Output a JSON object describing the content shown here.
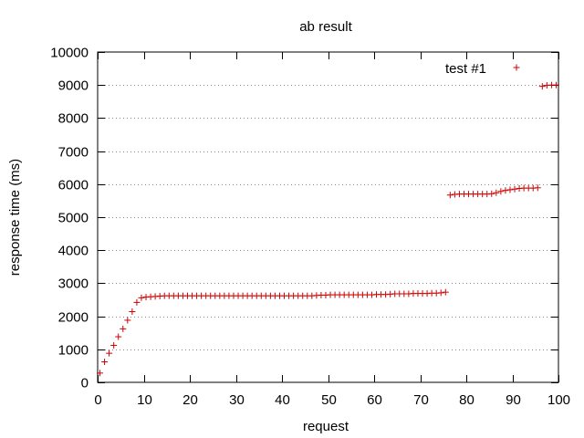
{
  "chart_data": {
    "type": "scatter",
    "title": "ab result",
    "xlabel": "request",
    "ylabel": "response time (ms)",
    "xlim": [
      0,
      100
    ],
    "ylim": [
      0,
      10000
    ],
    "x_ticks": [
      0,
      10,
      20,
      30,
      40,
      50,
      60,
      70,
      80,
      90,
      100
    ],
    "y_ticks": [
      0,
      1000,
      2000,
      3000,
      4000,
      5000,
      6000,
      7000,
      8000,
      9000,
      10000
    ],
    "grid": "horizontal-dotted",
    "legend_position": "top-right",
    "series": [
      {
        "name": "test #1",
        "color": "#cc0000",
        "marker": "plus",
        "x": [
          0,
          1,
          2,
          3,
          4,
          5,
          6,
          7,
          8,
          9,
          10,
          11,
          12,
          13,
          14,
          15,
          16,
          17,
          18,
          19,
          20,
          21,
          22,
          23,
          24,
          25,
          26,
          27,
          28,
          29,
          30,
          31,
          32,
          33,
          34,
          35,
          36,
          37,
          38,
          39,
          40,
          41,
          42,
          43,
          44,
          45,
          46,
          47,
          48,
          49,
          50,
          51,
          52,
          53,
          54,
          55,
          56,
          57,
          58,
          59,
          60,
          61,
          62,
          63,
          64,
          65,
          66,
          67,
          68,
          69,
          70,
          71,
          72,
          73,
          74,
          75,
          76,
          77,
          78,
          79,
          80,
          81,
          82,
          83,
          84,
          85,
          86,
          87,
          88,
          89,
          90,
          91,
          92,
          93,
          94,
          95,
          96,
          97,
          98,
          99
        ],
        "y": [
          280,
          620,
          880,
          1120,
          1380,
          1620,
          1880,
          2140,
          2420,
          2560,
          2580,
          2590,
          2600,
          2610,
          2620,
          2620,
          2620,
          2620,
          2620,
          2620,
          2620,
          2620,
          2620,
          2620,
          2620,
          2620,
          2620,
          2620,
          2620,
          2620,
          2620,
          2620,
          2620,
          2620,
          2620,
          2620,
          2620,
          2620,
          2620,
          2620,
          2620,
          2620,
          2620,
          2620,
          2620,
          2620,
          2620,
          2630,
          2640,
          2640,
          2650,
          2650,
          2650,
          2650,
          2650,
          2650,
          2650,
          2650,
          2650,
          2650,
          2660,
          2660,
          2660,
          2670,
          2680,
          2680,
          2680,
          2680,
          2690,
          2690,
          2690,
          2690,
          2700,
          2700,
          2710,
          2730,
          5670,
          5690,
          5700,
          5700,
          5700,
          5700,
          5700,
          5700,
          5700,
          5710,
          5740,
          5780,
          5810,
          5830,
          5850,
          5870,
          5880,
          5880,
          5880,
          5890,
          8960,
          8990,
          9000,
          9000
        ]
      }
    ]
  }
}
